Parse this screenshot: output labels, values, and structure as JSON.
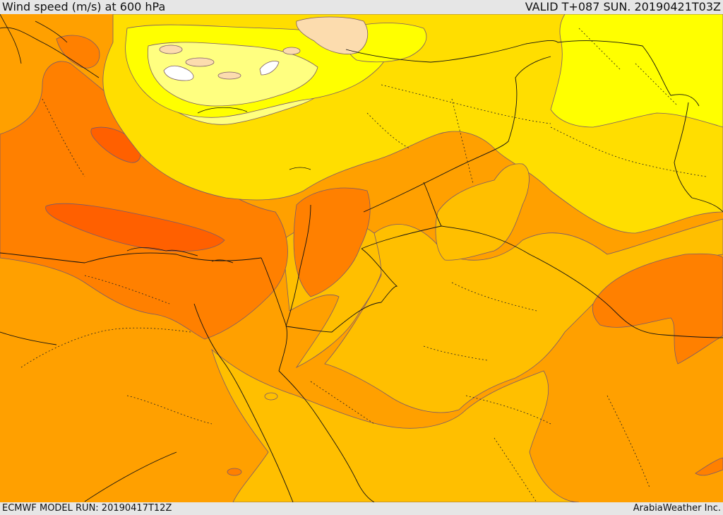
{
  "header": {
    "field_title": "Wind speed (m/s) at 600 hPa",
    "valid_time": "VALID T+087 SUN. 20190421T03Z"
  },
  "footer": {
    "model_run": "ECMWF MODEL RUN: 20190417T12Z",
    "credit": "ArabiaWeather Inc."
  },
  "map": {
    "palette": {
      "white": "#ffffff",
      "pale_peach": "#fcdcae",
      "light_yellow": "#ffff80",
      "yellow": "#ffff00",
      "gold": "#ffde00",
      "amber": "#ffbf00",
      "orange": "#ffa000",
      "dark_orange": "#ff8000",
      "red_orange": "#ff6000"
    }
  }
}
